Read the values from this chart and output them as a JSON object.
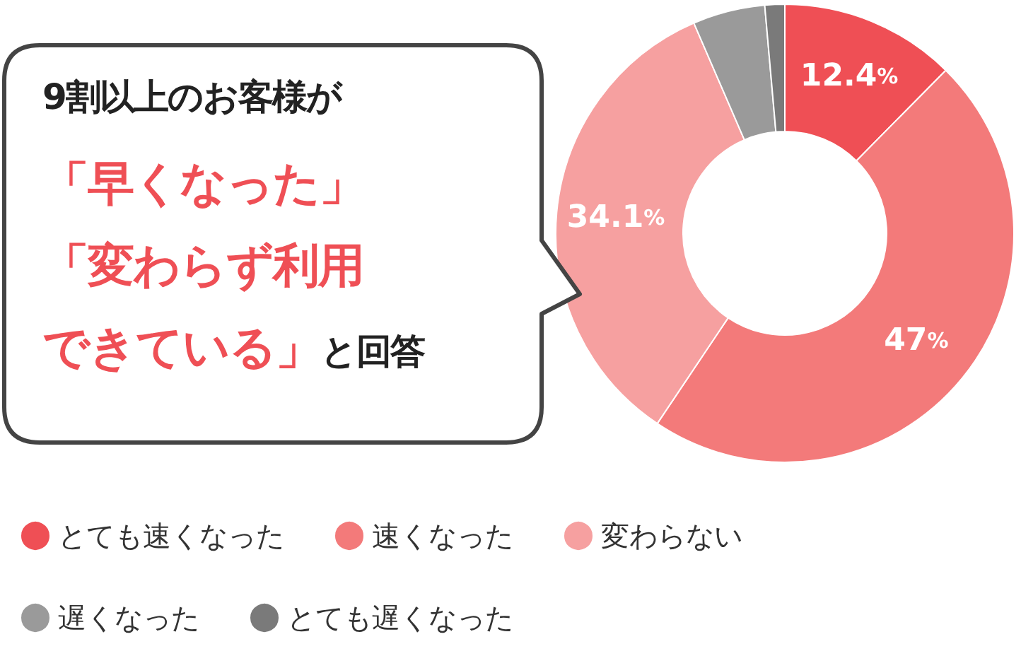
{
  "chart_data": {
    "type": "donut",
    "categories": [
      "とても速くなった",
      "速くなった",
      "変わらない",
      "遅くなった",
      "とても遅くなった"
    ],
    "values": [
      12.4,
      47,
      34.1,
      5.1,
      1.4
    ],
    "colors": [
      "#ef4f55",
      "#f37a7a",
      "#f6a0a0",
      "#9a9a9a",
      "#7a7a7a"
    ],
    "value_labels": [
      "12.4%",
      "47%",
      "34.1%",
      null,
      null
    ],
    "legend": "bottom",
    "annotations": [
      "9割以上のお客様が",
      "「早くなった」",
      "「変わらず利用",
      "できている」",
      "と回答"
    ]
  }
}
